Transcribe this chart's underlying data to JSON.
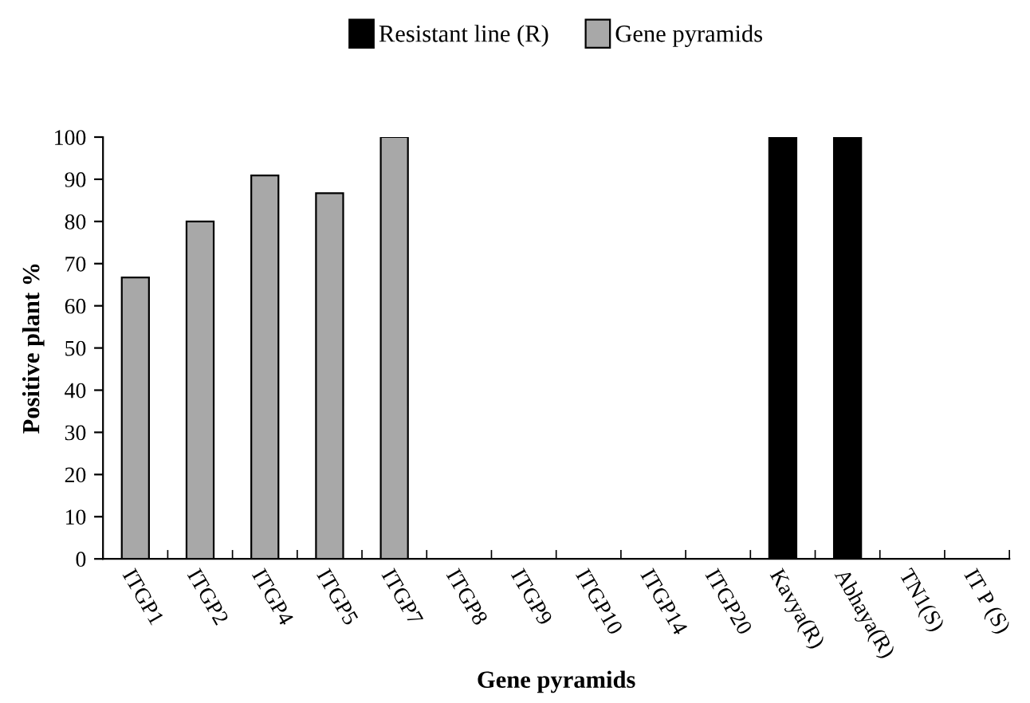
{
  "chart_data": {
    "type": "bar",
    "xlabel": "Gene pyramids",
    "ylabel": "Positive plant %",
    "categories": [
      "ITGP1",
      "ITGP2",
      "ITGP4",
      "ITGP5",
      "ITGP7",
      "ITGP8",
      "ITGP9",
      "ITGP10",
      "ITGP14",
      "ITGP20",
      "Kavya(R)",
      "Abhaya(R)",
      "TN1(S)",
      "IT P (S)"
    ],
    "series": [
      {
        "name": "Resistant line (R)",
        "color": "#000000",
        "values": [
          null,
          null,
          null,
          null,
          null,
          null,
          null,
          null,
          null,
          null,
          100,
          100,
          null,
          null
        ]
      },
      {
        "name": "Gene pyramids",
        "color": "#a8a8a8",
        "values": [
          66.7,
          80,
          90.9,
          86.7,
          100,
          0,
          0,
          0,
          0,
          0,
          null,
          null,
          0,
          0
        ]
      }
    ],
    "ylim": [
      0,
      100
    ],
    "yticks": [
      0,
      10,
      20,
      30,
      40,
      50,
      60,
      70,
      80,
      90,
      100
    ],
    "grid": false,
    "legend": "top"
  }
}
